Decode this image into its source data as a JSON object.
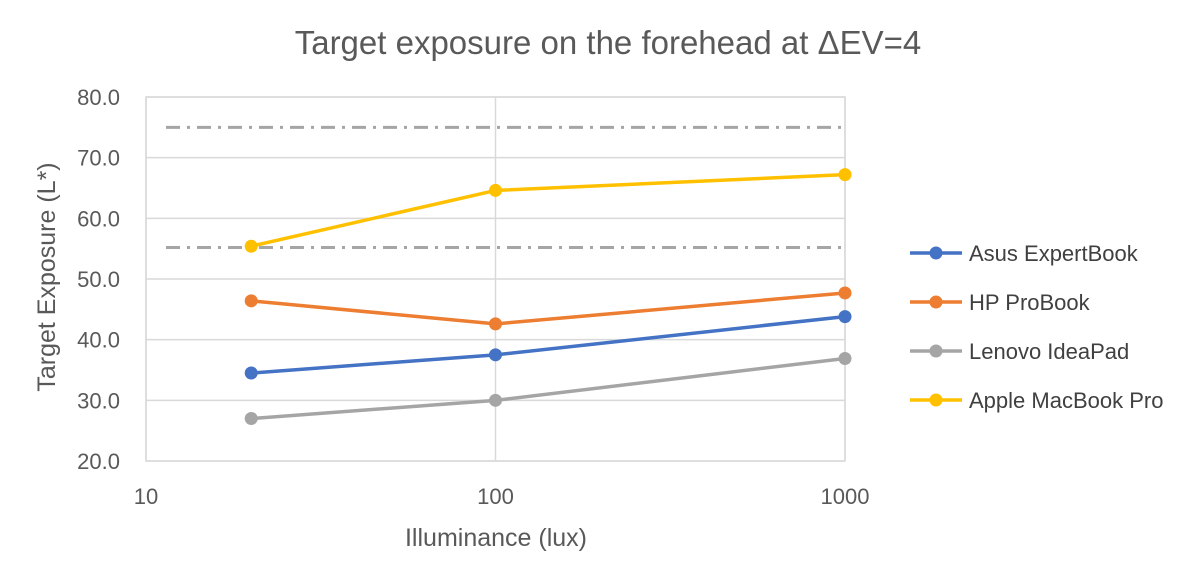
{
  "chart_data": {
    "type": "line",
    "title": "Target exposure on the forehead at ΔEV=4",
    "xlabel": "Illuminance (lux)",
    "ylabel": "Target Exposure (L*)",
    "x_scale": "log",
    "xlim": [
      10,
      1000
    ],
    "ylim": [
      20,
      80
    ],
    "x_ticks": [
      10,
      100,
      1000
    ],
    "x_tick_labels": [
      "10",
      "100",
      "1000"
    ],
    "y_ticks": [
      20,
      30,
      40,
      50,
      60,
      70,
      80
    ],
    "y_tick_labels": [
      "20.0",
      "30.0",
      "40.0",
      "50.0",
      "60.0",
      "70.0",
      "80.0"
    ],
    "grid": true,
    "legend_position": "right",
    "x": [
      20,
      100,
      1000
    ],
    "series": [
      {
        "name": "Asus ExpertBook",
        "color": "#4472C4",
        "values": [
          34.5,
          37.5,
          43.8
        ]
      },
      {
        "name": "HP ProBook",
        "color": "#ED7D31",
        "values": [
          46.4,
          42.6,
          47.7
        ]
      },
      {
        "name": "Lenovo IdeaPad",
        "color": "#A5A5A5",
        "values": [
          27.0,
          30.0,
          36.9
        ]
      },
      {
        "name": "Apple MacBook Pro",
        "color": "#FFC000",
        "values": [
          55.4,
          64.6,
          67.2
        ]
      }
    ],
    "reference_lines": [
      {
        "y": 75,
        "style": "dash-dot",
        "color": "#A5A5A5"
      },
      {
        "y": 55.2,
        "style": "dash-dot",
        "color": "#A5A5A5"
      }
    ]
  }
}
